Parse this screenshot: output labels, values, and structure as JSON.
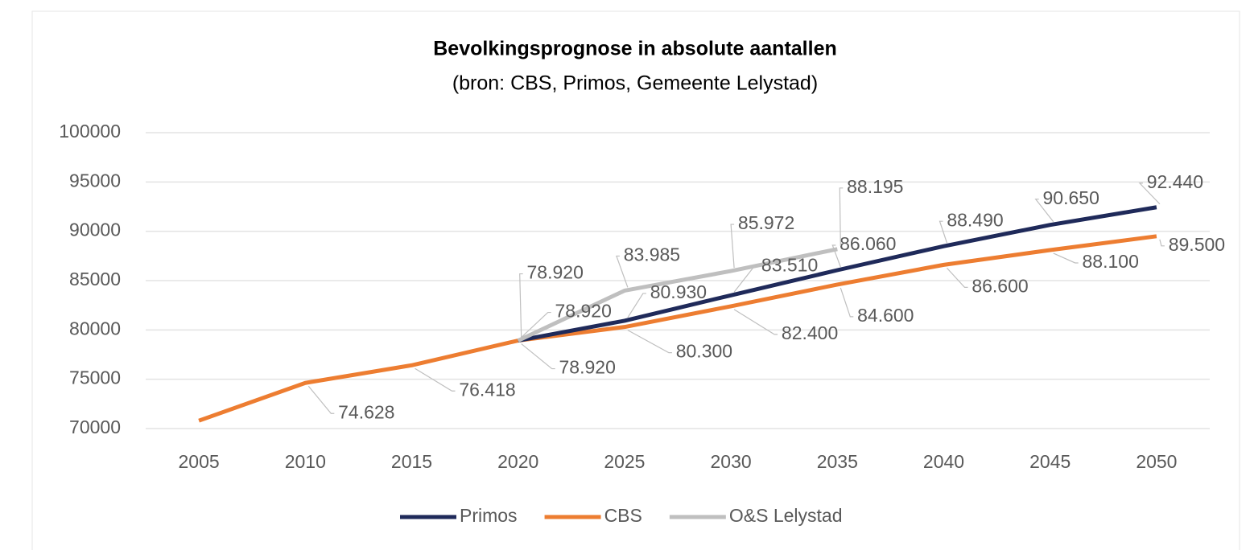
{
  "chart_data": {
    "type": "line",
    "title": "Bevolkingsprognose in absolute aantallen",
    "subtitle": "(bron: CBS, Primos, Gemeente Lelystad)",
    "categories": [
      "2005",
      "2010",
      "2015",
      "2020",
      "2025",
      "2030",
      "2035",
      "2040",
      "2045",
      "2050"
    ],
    "series": [
      {
        "name": "Primos",
        "color": "#1f2a5a",
        "values": [
          null,
          null,
          null,
          78920,
          80930,
          83510,
          86060,
          88490,
          90650,
          92440
        ],
        "value_labels": [
          null,
          null,
          null,
          "78.920",
          "80.930",
          "83.510",
          "86.060",
          "88.490",
          "90.650",
          "92.440"
        ]
      },
      {
        "name": "CBS",
        "color": "#ed7d31",
        "values": [
          70800,
          74628,
          76418,
          78920,
          80300,
          82400,
          84600,
          86600,
          88100,
          89500
        ],
        "value_labels": [
          null,
          "74.628",
          "76.418",
          "78.920",
          "80.300",
          "82.400",
          "84.600",
          "86.600",
          "88.100",
          "89.500"
        ]
      },
      {
        "name": "O&S Lelystad",
        "color": "#bfbfbf",
        "values": [
          null,
          null,
          null,
          78920,
          83985,
          85972,
          88195,
          null,
          null,
          null
        ],
        "value_labels": [
          null,
          null,
          null,
          "78.920",
          "83.985",
          "85.972",
          "88.195",
          null,
          null,
          null
        ]
      }
    ],
    "ylim": [
      70000,
      100000
    ],
    "yticks": [
      70000,
      75000,
      80000,
      85000,
      90000,
      95000,
      100000
    ],
    "grid": true,
    "legend": "bottom"
  }
}
